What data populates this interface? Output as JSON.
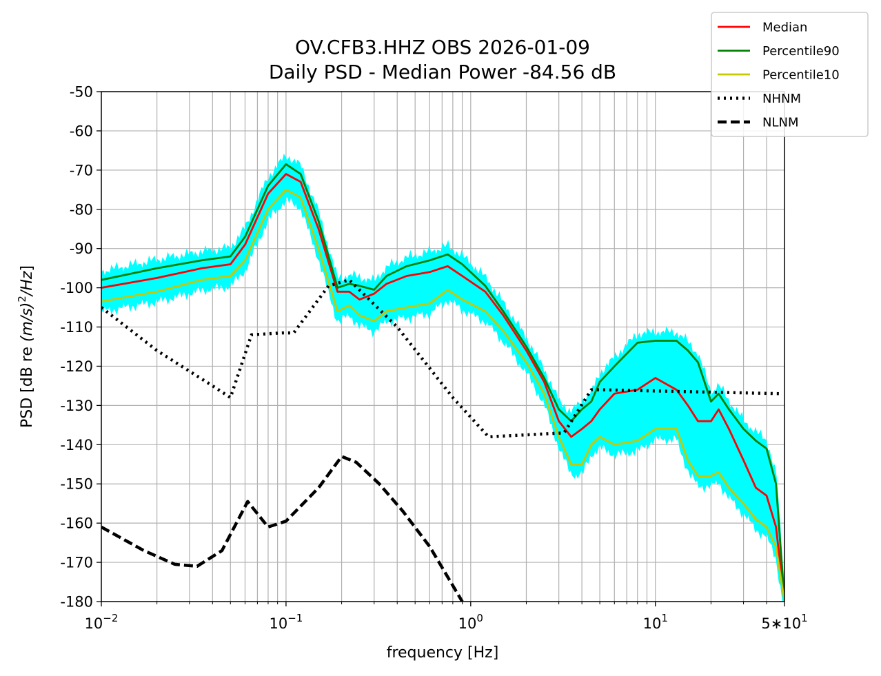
{
  "chart_data": {
    "type": "line",
    "title": "OV.CFB3.HHZ OBS 2026-01-09",
    "subtitle": "Daily PSD - Median Power -84.56 dB",
    "xlabel": "frequency [Hz]",
    "ylabel_parts": [
      "PSD [dB re ",
      "(m/s)",
      "2",
      "/Hz",
      "]"
    ],
    "xscale": "log",
    "xlim": [
      0.01,
      50
    ],
    "ylim": [
      -180,
      -50
    ],
    "grid": true,
    "legend_position": "top-right",
    "x_ticks": [
      {
        "value": 0.01,
        "base": "10",
        "exp": "−2"
      },
      {
        "value": 0.1,
        "base": "10",
        "exp": "−1"
      },
      {
        "value": 1,
        "base": "10",
        "exp": "0"
      },
      {
        "value": 10,
        "base": "10",
        "exp": "1"
      },
      {
        "value": 50,
        "base": "5∗10",
        "exp": "1"
      }
    ],
    "y_ticks": [
      "-50",
      "-60",
      "-70",
      "-80",
      "-90",
      "-100",
      "-110",
      "-120",
      "-130",
      "-140",
      "-150",
      "-160",
      "-170",
      "-180"
    ],
    "hourly_band_color": "#00ffff",
    "series": [
      {
        "name": "Median",
        "color": "#ff0000",
        "style": "solid",
        "points": [
          [
            0.01,
            -100
          ],
          [
            0.02,
            -97.5
          ],
          [
            0.035,
            -95
          ],
          [
            0.05,
            -94
          ],
          [
            0.06,
            -89
          ],
          [
            0.08,
            -76
          ],
          [
            0.1,
            -71
          ],
          [
            0.12,
            -73
          ],
          [
            0.15,
            -85
          ],
          [
            0.19,
            -101
          ],
          [
            0.22,
            -101
          ],
          [
            0.25,
            -103
          ],
          [
            0.3,
            -101.5
          ],
          [
            0.35,
            -99
          ],
          [
            0.45,
            -97
          ],
          [
            0.6,
            -96
          ],
          [
            0.75,
            -94.5
          ],
          [
            0.9,
            -97
          ],
          [
            1.2,
            -101
          ],
          [
            1.5,
            -107
          ],
          [
            2,
            -116
          ],
          [
            2.5,
            -124
          ],
          [
            3,
            -134
          ],
          [
            3.5,
            -138
          ],
          [
            4,
            -136
          ],
          [
            4.5,
            -134
          ],
          [
            5,
            -131
          ],
          [
            6,
            -127
          ],
          [
            8,
            -126
          ],
          [
            10,
            -123
          ],
          [
            13,
            -126
          ],
          [
            15,
            -130
          ],
          [
            17,
            -134
          ],
          [
            20,
            -134
          ],
          [
            22,
            -131
          ],
          [
            25,
            -136
          ],
          [
            30,
            -144
          ],
          [
            35,
            -151
          ],
          [
            40,
            -153
          ],
          [
            45,
            -161
          ],
          [
            50,
            -180
          ]
        ]
      },
      {
        "name": "Percentile90",
        "color": "#008000",
        "style": "solid",
        "points": [
          [
            0.01,
            -98
          ],
          [
            0.02,
            -95
          ],
          [
            0.035,
            -93
          ],
          [
            0.05,
            -92
          ],
          [
            0.06,
            -87
          ],
          [
            0.08,
            -74
          ],
          [
            0.1,
            -68.5
          ],
          [
            0.12,
            -71
          ],
          [
            0.15,
            -83
          ],
          [
            0.19,
            -100
          ],
          [
            0.22,
            -99
          ],
          [
            0.25,
            -99.5
          ],
          [
            0.3,
            -100.5
          ],
          [
            0.35,
            -97
          ],
          [
            0.45,
            -94.5
          ],
          [
            0.6,
            -93
          ],
          [
            0.75,
            -91.5
          ],
          [
            0.9,
            -94
          ],
          [
            1.2,
            -99.5
          ],
          [
            1.5,
            -106
          ],
          [
            2,
            -115
          ],
          [
            2.5,
            -123
          ],
          [
            3,
            -131
          ],
          [
            3.5,
            -134
          ],
          [
            4,
            -131
          ],
          [
            4.5,
            -129
          ],
          [
            5,
            -124
          ],
          [
            6,
            -120
          ],
          [
            8,
            -114
          ],
          [
            10,
            -113.5
          ],
          [
            13,
            -113.5
          ],
          [
            15,
            -116
          ],
          [
            17,
            -119
          ],
          [
            20,
            -129
          ],
          [
            22,
            -127
          ],
          [
            25,
            -131
          ],
          [
            30,
            -136
          ],
          [
            35,
            -139
          ],
          [
            40,
            -141
          ],
          [
            45,
            -150
          ],
          [
            50,
            -180
          ]
        ]
      },
      {
        "name": "Percentile10",
        "color": "#c8c800",
        "style": "solid",
        "points": [
          [
            0.01,
            -103.5
          ],
          [
            0.02,
            -101
          ],
          [
            0.035,
            -98
          ],
          [
            0.05,
            -97
          ],
          [
            0.06,
            -93
          ],
          [
            0.08,
            -80
          ],
          [
            0.1,
            -75
          ],
          [
            0.12,
            -77
          ],
          [
            0.15,
            -90
          ],
          [
            0.19,
            -106
          ],
          [
            0.22,
            -104.5
          ],
          [
            0.25,
            -107
          ],
          [
            0.3,
            -108.5
          ],
          [
            0.35,
            -106
          ],
          [
            0.45,
            -105
          ],
          [
            0.6,
            -104
          ],
          [
            0.75,
            -100.5
          ],
          [
            0.9,
            -103
          ],
          [
            1.2,
            -106
          ],
          [
            1.5,
            -111
          ],
          [
            2,
            -119
          ],
          [
            2.5,
            -127
          ],
          [
            3,
            -138
          ],
          [
            3.5,
            -145
          ],
          [
            4,
            -145
          ],
          [
            4.5,
            -140
          ],
          [
            5,
            -138
          ],
          [
            6,
            -140
          ],
          [
            8,
            -139
          ],
          [
            10,
            -136
          ],
          [
            13,
            -136
          ],
          [
            15,
            -144
          ],
          [
            17,
            -148
          ],
          [
            20,
            -148
          ],
          [
            22,
            -147
          ],
          [
            25,
            -151
          ],
          [
            30,
            -155
          ],
          [
            35,
            -159
          ],
          [
            40,
            -161
          ],
          [
            45,
            -166
          ],
          [
            50,
            -180
          ]
        ]
      },
      {
        "name": "NHNM",
        "color": "#000000",
        "style": "dotted",
        "points": [
          [
            0.01,
            -105
          ],
          [
            0.02,
            -116
          ],
          [
            0.04,
            -125
          ],
          [
            0.05,
            -128
          ],
          [
            0.065,
            -112
          ],
          [
            0.095,
            -111.5
          ],
          [
            0.11,
            -111.5
          ],
          [
            0.17,
            -99.5
          ],
          [
            0.22,
            -98
          ],
          [
            0.4,
            -110
          ],
          [
            0.8,
            -128
          ],
          [
            1.25,
            -138
          ],
          [
            3.2,
            -137
          ],
          [
            4.5,
            -126
          ],
          [
            5,
            -126
          ],
          [
            48,
            -127
          ]
        ]
      },
      {
        "name": "NLNM",
        "color": "#000000",
        "style": "dashed",
        "points": [
          [
            0.01,
            -161
          ],
          [
            0.017,
            -167
          ],
          [
            0.025,
            -170.5
          ],
          [
            0.033,
            -171
          ],
          [
            0.045,
            -167
          ],
          [
            0.062,
            -154.5
          ],
          [
            0.08,
            -161
          ],
          [
            0.1,
            -159.5
          ],
          [
            0.15,
            -151
          ],
          [
            0.2,
            -143
          ],
          [
            0.24,
            -144.5
          ],
          [
            0.32,
            -150
          ],
          [
            0.43,
            -157
          ],
          [
            0.6,
            -166
          ],
          [
            0.9,
            -180
          ]
        ]
      }
    ]
  }
}
